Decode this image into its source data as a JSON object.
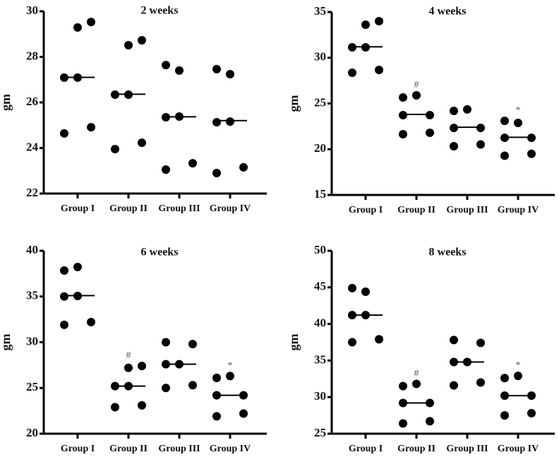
{
  "chart_data": [
    {
      "type": "scatter",
      "title": "2 weeks",
      "ylabel": "gm",
      "xlabel": "",
      "categories": [
        "Group I",
        "Group II",
        "Group III",
        "Group IV"
      ],
      "ylim": [
        22,
        30
      ],
      "yticks": [
        22,
        24,
        26,
        28,
        30
      ],
      "grid": false,
      "series": [
        {
          "name": "Group I",
          "values": [
            27.09,
            27.09,
            29.29,
            29.53,
            24.64,
            24.91
          ],
          "median": 27.1,
          "annotation": ""
        },
        {
          "name": "Group II",
          "values": [
            26.34,
            26.34,
            28.51,
            28.73,
            23.95,
            24.23
          ],
          "median": 26.36,
          "annotation": ""
        },
        {
          "name": "Group III",
          "values": [
            25.35,
            25.38,
            27.64,
            27.4,
            23.05,
            23.33
          ],
          "median": 25.37,
          "annotation": ""
        },
        {
          "name": "Group IV",
          "values": [
            25.13,
            25.16,
            27.46,
            27.24,
            22.9,
            23.15
          ],
          "median": 25.2,
          "annotation": ""
        }
      ]
    },
    {
      "type": "scatter",
      "title": "4 weeks",
      "ylabel": "gm",
      "xlabel": "",
      "categories": [
        "Group I",
        "Group II",
        "Group III",
        "Group IV"
      ],
      "ylim": [
        15,
        35
      ],
      "yticks": [
        15,
        20,
        25,
        30,
        35
      ],
      "grid": false,
      "series": [
        {
          "name": "Group I",
          "values": [
            31.14,
            31.14,
            33.61,
            34.0,
            28.36,
            28.67
          ],
          "median": 31.2,
          "annotation": ""
        },
        {
          "name": "Group II",
          "values": [
            23.73,
            23.73,
            25.66,
            25.89,
            21.64,
            21.8
          ],
          "median": 23.8,
          "annotation": "#"
        },
        {
          "name": "Group III",
          "values": [
            22.33,
            22.33,
            24.19,
            24.35,
            20.33,
            20.52
          ],
          "median": 22.4,
          "annotation": ""
        },
        {
          "name": "Group IV",
          "values": [
            21.25,
            21.25,
            23.1,
            22.88,
            19.29,
            19.5
          ],
          "median": 21.3,
          "annotation": "*"
        }
      ]
    },
    {
      "type": "scatter",
      "title": "6 weeks",
      "ylabel": "gm",
      "xlabel": "",
      "categories": [
        "Group I",
        "Group II",
        "Group III",
        "Group IV"
      ],
      "ylim": [
        20,
        40
      ],
      "yticks": [
        20,
        25,
        30,
        35,
        40
      ],
      "grid": false,
      "series": [
        {
          "name": "Group I",
          "values": [
            35.0,
            35.06,
            37.84,
            38.22,
            31.9,
            32.2
          ],
          "median": 35.1,
          "annotation": ""
        },
        {
          "name": "Group II",
          "values": [
            25.2,
            25.2,
            27.2,
            27.4,
            22.9,
            23.1
          ],
          "median": 25.2,
          "annotation": "#"
        },
        {
          "name": "Group III",
          "values": [
            27.6,
            27.6,
            30.0,
            29.8,
            25.0,
            25.3
          ],
          "median": 27.6,
          "annotation": ""
        },
        {
          "name": "Group IV",
          "values": [
            24.2,
            24.2,
            26.1,
            26.3,
            21.9,
            22.2
          ],
          "median": 24.2,
          "annotation": "*"
        }
      ]
    },
    {
      "type": "scatter",
      "title": "8 weeks",
      "ylabel": "gm",
      "xlabel": "",
      "categories": [
        "Group I",
        "Group II",
        "Group III",
        "Group IV"
      ],
      "ylim": [
        25,
        50
      ],
      "yticks": [
        25,
        30,
        35,
        40,
        45,
        50
      ],
      "grid": false,
      "series": [
        {
          "name": "Group I",
          "values": [
            41.2,
            41.2,
            44.9,
            44.4,
            37.5,
            37.9
          ],
          "median": 41.2,
          "annotation": ""
        },
        {
          "name": "Group II",
          "values": [
            29.2,
            29.2,
            31.5,
            31.8,
            26.4,
            26.7
          ],
          "median": 29.2,
          "annotation": "#"
        },
        {
          "name": "Group III",
          "values": [
            34.8,
            34.8,
            37.8,
            37.4,
            31.6,
            32.0
          ],
          "median": 34.8,
          "annotation": ""
        },
        {
          "name": "Group IV",
          "values": [
            30.2,
            30.2,
            32.6,
            32.9,
            27.5,
            27.8
          ],
          "median": 30.2,
          "annotation": "*"
        }
      ]
    }
  ]
}
